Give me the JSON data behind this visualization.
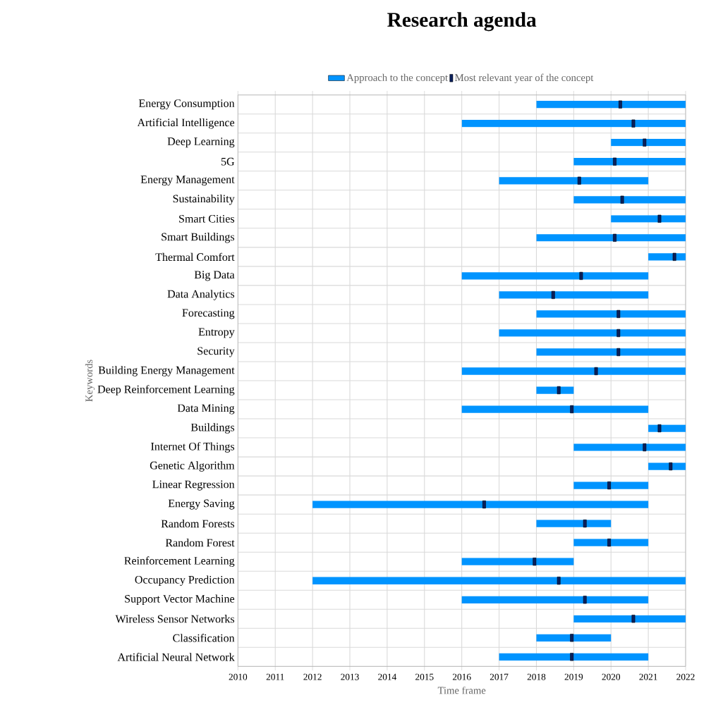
{
  "chart_data": {
    "type": "bar",
    "orientation": "horizontal",
    "title": "Research agenda",
    "xlabel": "Time frame",
    "ylabel": "Keywords",
    "categories": [
      "Energy Consumption",
      "Artificial Intelligence",
      "Deep Learning",
      "5G",
      "Energy Management",
      "Sustainability",
      "Smart Cities",
      "Smart Buildings",
      "Thermal Comfort",
      "Big Data",
      "Data Analytics",
      "Forecasting",
      "Entropy",
      "Security",
      "Building Energy Management",
      "Deep Reinforcement Learning",
      "Data Mining",
      "Buildings",
      "Internet Of Things",
      "Genetic Algorithm",
      "Linear Regression",
      "Energy Saving",
      "Random Forests",
      "Random Forest",
      "Reinforcement Learning",
      "Occupancy Prediction",
      "Support Vector Machine",
      "Wireless Sensor Networks",
      "Classification",
      "Artificial Neural Network"
    ],
    "series": [
      {
        "name": "Approach to the concept",
        "type": "bar",
        "color": "#0094ff",
        "base": [
          2018,
          2016,
          2020,
          2019,
          2017,
          2019,
          2020,
          2018,
          2021,
          2016,
          2017,
          2018,
          2017,
          2018,
          2016,
          2018,
          2016,
          2021,
          2019,
          2021,
          2019,
          2012,
          2018,
          2019,
          2016,
          2012,
          2016,
          2019,
          2018,
          2017
        ],
        "values": [
          4,
          6,
          2,
          3,
          4,
          3,
          2,
          4,
          1,
          5,
          4,
          4,
          5,
          4,
          6,
          1,
          5,
          1,
          3,
          1,
          2,
          9,
          2,
          2,
          3,
          10,
          5,
          3,
          2,
          4
        ]
      },
      {
        "name": "Most relevant year of the concept",
        "type": "scatter",
        "color": "#0a1f5c",
        "values": [
          2020.25,
          2020.6,
          2020.9,
          2020.1,
          2019.15,
          2020.3,
          2021.3,
          2020.1,
          2021.7,
          2019.2,
          2018.45,
          2020.2,
          2020.2,
          2020.2,
          2019.6,
          2018.6,
          2018.95,
          2021.3,
          2020.9,
          2021.6,
          2019.95,
          2016.6,
          2019.3,
          2019.95,
          2017.95,
          2018.6,
          2019.3,
          2020.6,
          2018.95,
          2018.95
        ]
      }
    ],
    "xlim": [
      2010,
      2022
    ],
    "xticks": [
      2010,
      2011,
      2012,
      2013,
      2014,
      2015,
      2016,
      2017,
      2018,
      2019,
      2020,
      2021,
      2022
    ],
    "grid": true,
    "legend": "top"
  }
}
